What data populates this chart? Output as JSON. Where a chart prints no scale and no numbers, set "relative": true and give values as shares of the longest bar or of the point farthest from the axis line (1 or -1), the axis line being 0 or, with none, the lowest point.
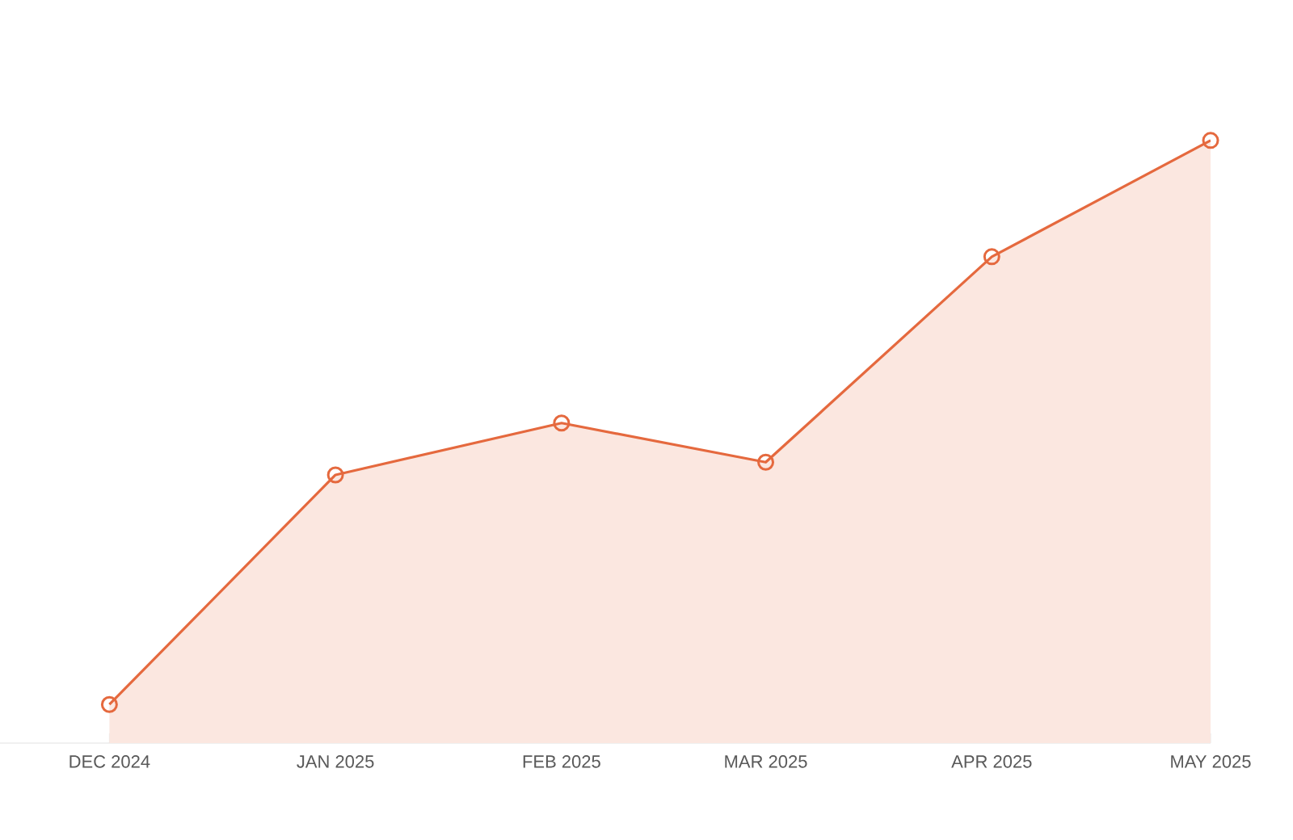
{
  "chart_data": {
    "type": "area",
    "relative": true,
    "x": [
      "2024-12",
      "2025-01",
      "2025-02",
      "2025-03",
      "2025-04",
      "2025-05"
    ],
    "xlim": [
      "2024-11-16",
      "2025-05-01"
    ],
    "xticks": [
      {
        "value": "2024-12",
        "label": "DEC 2024"
      },
      {
        "value": "2025-01",
        "label": "JAN 2025"
      },
      {
        "value": "2025-02",
        "label": "FEB 2025"
      },
      {
        "value": "2025-03",
        "label": "MAR 2025"
      },
      {
        "value": "2025-04",
        "label": "APR 2025"
      },
      {
        "value": "2025-05",
        "label": "MAY 2025"
      }
    ],
    "series": [
      {
        "color": "#e5693e",
        "values": [
          0.064,
          0.445,
          0.531,
          0.466,
          0.807,
          1
        ]
      }
    ],
    "marker": "circle",
    "line_style": "solid"
  }
}
